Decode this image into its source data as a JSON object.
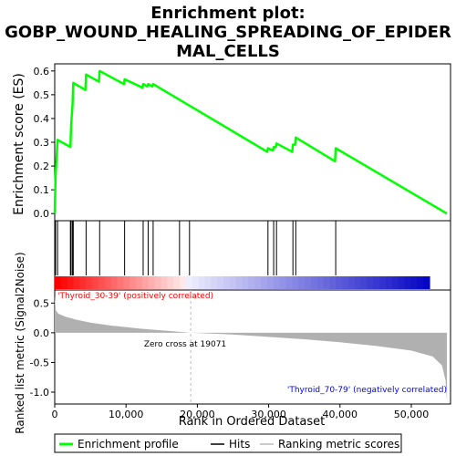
{
  "title_line1": "Enrichment plot:",
  "title_line2": "GOBP_WOUND_HEALING_SPREADING_OF_EPIDER",
  "title_line3": "MAL_CELLS",
  "colors": {
    "es_line": "#00ff00",
    "hits": "#000000",
    "metric_fill": "#b0b0b0",
    "pos_label": "#ff0000",
    "neg_label": "#0000ff",
    "zero_cross_line": "#bbbbbb"
  },
  "chart_data": [
    {
      "type": "line",
      "name": "enrichment-profile",
      "ylabel": "Enrichment score (ES)",
      "ylim": [
        -0.03,
        0.63
      ],
      "yticks": [
        0.0,
        0.1,
        0.2,
        0.3,
        0.4,
        0.5,
        0.6
      ],
      "ytick_labels": [
        "0.0",
        "0.1",
        "0.2",
        "0.3",
        "0.4",
        "0.5",
        "0.6"
      ],
      "xlim": [
        0,
        55500
      ],
      "grid": false,
      "points": [
        [
          0,
          0.0
        ],
        [
          120,
          0.16
        ],
        [
          400,
          0.31
        ],
        [
          2200,
          0.28
        ],
        [
          2300,
          0.37
        ],
        [
          2500,
          0.46
        ],
        [
          2600,
          0.55
        ],
        [
          4300,
          0.52
        ],
        [
          4400,
          0.585
        ],
        [
          6200,
          0.555
        ],
        [
          6300,
          0.6
        ],
        [
          9700,
          0.545
        ],
        [
          9800,
          0.565
        ],
        [
          12300,
          0.53
        ],
        [
          12400,
          0.545
        ],
        [
          13000,
          0.535
        ],
        [
          13100,
          0.545
        ],
        [
          13700,
          0.535
        ],
        [
          13800,
          0.545
        ],
        [
          29800,
          0.26
        ],
        [
          29900,
          0.275
        ],
        [
          30600,
          0.265
        ],
        [
          30700,
          0.28
        ],
        [
          31000,
          0.28
        ],
        [
          31100,
          0.295
        ],
        [
          33300,
          0.26
        ],
        [
          33400,
          0.29
        ],
        [
          33700,
          0.29
        ],
        [
          33800,
          0.32
        ],
        [
          39300,
          0.22
        ],
        [
          39400,
          0.275
        ],
        [
          55000,
          0.0
        ]
      ]
    },
    {
      "type": "hits",
      "name": "hits",
      "positions": [
        120,
        400,
        2200,
        2300,
        2500,
        2600,
        4400,
        6300,
        9800,
        12400,
        13100,
        13800,
        17500,
        18900,
        29900,
        30700,
        31100,
        33400,
        33800,
        39400
      ]
    },
    {
      "type": "area",
      "name": "ranking-metric-scores",
      "xlabel": "Rank in Ordered Dataset",
      "ylabel": "Ranked list metric (Signal2Noise)",
      "ylim": [
        -1.2,
        0.72
      ],
      "yticks": [
        0.5,
        0.0,
        -0.5,
        -1.0
      ],
      "ytick_labels": [
        "0.5",
        "0.0",
        "-0.5",
        "-1.0"
      ],
      "xticks": [
        0,
        10000,
        20000,
        30000,
        40000,
        50000
      ],
      "xtick_labels": [
        "0",
        "10,000",
        "20,000",
        "30,000",
        "40,000",
        "50,000"
      ],
      "xlim": [
        0,
        55500
      ],
      "zero_cross": 19071,
      "zero_cross_label": "Zero cross at 19071",
      "pos_label": "'Thyroid_30-39' (positively correlated)",
      "neg_label": "'Thyroid_70-79' (negatively correlated)",
      "points": [
        [
          0,
          0.63
        ],
        [
          150,
          0.38
        ],
        [
          500,
          0.32
        ],
        [
          1500,
          0.27
        ],
        [
          3000,
          0.22
        ],
        [
          5000,
          0.17
        ],
        [
          8000,
          0.12
        ],
        [
          12000,
          0.07
        ],
        [
          16000,
          0.03
        ],
        [
          19071,
          0.0
        ],
        [
          25000,
          -0.03
        ],
        [
          30000,
          -0.07
        ],
        [
          35000,
          -0.11
        ],
        [
          40000,
          -0.16
        ],
        [
          45000,
          -0.22
        ],
        [
          50000,
          -0.3
        ],
        [
          53000,
          -0.4
        ],
        [
          54300,
          -0.55
        ],
        [
          54800,
          -0.8
        ],
        [
          55000,
          -1.15
        ]
      ]
    }
  ],
  "legend": {
    "items": [
      {
        "label": "Enrichment profile",
        "kind": "green-line"
      },
      {
        "label": "Hits",
        "kind": "black-line"
      },
      {
        "label": "Ranking metric scores",
        "kind": "gray-line"
      }
    ]
  }
}
